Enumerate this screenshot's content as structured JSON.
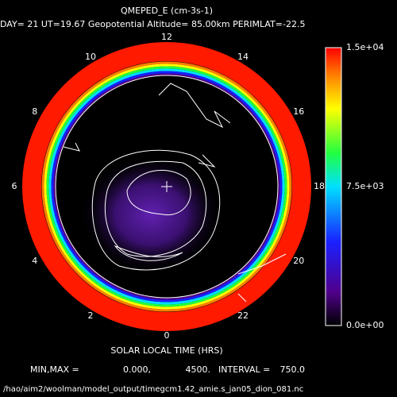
{
  "header": {
    "title": "QMEPED_E (cm-3s-1)",
    "subtitle": "DAY= 21 UT=19.67 Geopotential Altitude= 85.00km PERIMLAT=-22.5"
  },
  "local_time_labels": [
    "12",
    "14",
    "16",
    "18",
    "20",
    "22",
    "0",
    "2",
    "4",
    "6",
    "8",
    "10"
  ],
  "colorbar": {
    "labels": [
      "1.5e+04",
      "7.5e+03",
      "0.0e+00"
    ]
  },
  "axis_label": "SOLAR LOCAL TIME (HRS)",
  "footer": {
    "min_max_label": "MIN,MAX =",
    "min": "0.000,",
    "max": "4500.",
    "interval_label": "INTERVAL =",
    "interval": "750.0"
  },
  "file_path": "/hao/aim2/woolman/model_output/timegcm1.42_amie.s_jan05_dion_081.nc"
}
